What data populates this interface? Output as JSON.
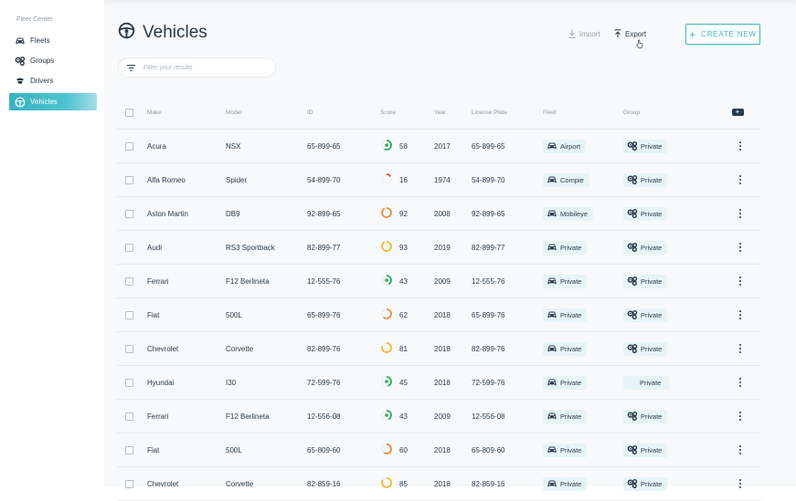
{
  "sidebar": {
    "heading": "Fleet Center",
    "items": [
      {
        "label": "Fleets",
        "icon": "car-icon",
        "active": false
      },
      {
        "label": "Groups",
        "icon": "groups-icon",
        "active": false
      },
      {
        "label": "Drivers",
        "icon": "driver-icon",
        "active": false
      },
      {
        "label": "Vehicles",
        "icon": "steering-wheel-icon",
        "active": true
      }
    ]
  },
  "header": {
    "title": "Vehicles",
    "import_label": "Import",
    "export_label": "Export",
    "create_label": "CREATE NEW"
  },
  "search": {
    "placeholder": "Filter your results",
    "value": ""
  },
  "table": {
    "columns": [
      "Make",
      "Model",
      "ID",
      "Score",
      "Year",
      "License Plate",
      "Fleet",
      "Group"
    ],
    "rows": [
      {
        "make": "Acura",
        "model": "NSX",
        "id": "65-899-65",
        "score": 58,
        "year": "2017",
        "plate": "65-899-65",
        "fleet": "Airport",
        "group": "Private",
        "group_icon": true
      },
      {
        "make": "Alfa Romeo",
        "model": "Spider",
        "id": "54-899-70",
        "score": 16,
        "year": "1974",
        "plate": "54-899-70",
        "fleet": "Compie",
        "group": "Private",
        "group_icon": true
      },
      {
        "make": "Aston Martin",
        "model": "DB9",
        "id": "92-899-65",
        "score": 92,
        "year": "2008",
        "plate": "92-899-65",
        "fleet": "Mobileye",
        "group": "Private",
        "group_icon": true
      },
      {
        "make": "Audi",
        "model": "RS3 Sportback",
        "id": "82-899-77",
        "score": 93,
        "year": "2019",
        "plate": "82-899-77",
        "fleet": "Private",
        "group": "Private",
        "group_icon": true
      },
      {
        "make": "Ferrari",
        "model": "F12 Berlineta",
        "id": "12-555-76",
        "score": 43,
        "year": "2009",
        "plate": "12-555-76",
        "fleet": "Private",
        "group": "Private",
        "group_icon": true
      },
      {
        "make": "Fiat",
        "model": "500L",
        "id": "65-899-76",
        "score": 62,
        "year": "2018",
        "plate": "65-899-76",
        "fleet": "Private",
        "group": "Private",
        "group_icon": true
      },
      {
        "make": "Chevrolet",
        "model": "Corvette",
        "id": "82-899-76",
        "score": 81,
        "year": "2018",
        "plate": "82-899-76",
        "fleet": "Private",
        "group": "Private",
        "group_icon": true
      },
      {
        "make": "Hyundai",
        "model": "I30",
        "id": "72-599-76",
        "score": 45,
        "year": "2018",
        "plate": "72-599-76",
        "fleet": "Private",
        "group": "Private",
        "group_icon": false
      },
      {
        "make": "Ferrari",
        "model": "F12 Berlineta",
        "id": "12-556-08",
        "score": 43,
        "year": "2009",
        "plate": "12-556-08",
        "fleet": "Private",
        "group": "Private",
        "group_icon": true
      },
      {
        "make": "Fiat",
        "model": "500L",
        "id": "65-809-60",
        "score": 60,
        "year": "2018",
        "plate": "65-809-60",
        "fleet": "Private",
        "group": "Private",
        "group_icon": true
      },
      {
        "make": "Chevrolet",
        "model": "Corvette",
        "id": "82-859-16",
        "score": 85,
        "year": "2018",
        "plate": "82-859-16",
        "fleet": "Private",
        "group": "Private",
        "group_icon": true
      }
    ]
  },
  "colors": {
    "accent": "#3db6c4",
    "score_green": "#2eaa55",
    "score_red": "#e8553c",
    "score_orange": "#f08a3c",
    "score_yellow": "#f5b82e"
  }
}
